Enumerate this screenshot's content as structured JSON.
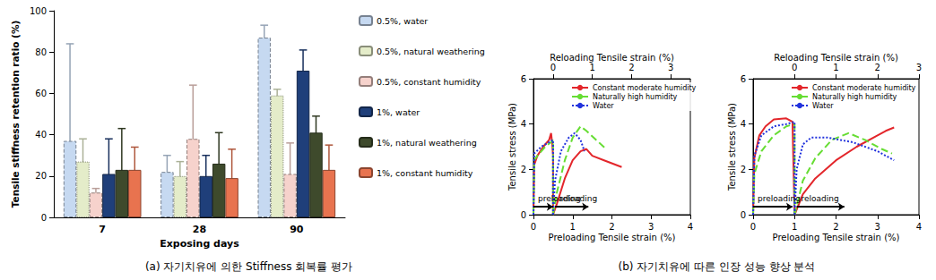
{
  "captions": [
    "(a) 자기치유에 의한 Stiffness 회복률 평가",
    "(b) 자기치유에 따른 인장 성능 향상 분석"
  ],
  "chart_data": [
    {
      "type": "bar",
      "xlabel": "Exposing days",
      "ylabel": "Tensile stiffness retention ratio (%)",
      "categories": [
        "7",
        "28",
        "90"
      ],
      "ylim": [
        0,
        100
      ],
      "yticks": [
        0,
        20,
        40,
        60,
        80,
        100
      ],
      "grid": false,
      "legend": "right",
      "series": [
        {
          "name": "0.5%, water",
          "color": "#c6d9f1",
          "line_style": "dashed",
          "values": [
            37,
            22,
            87
          ],
          "errors": [
            47,
            8,
            6
          ]
        },
        {
          "name": "0.5%, natural weathering",
          "color": "#e4ecc9",
          "line_style": "dotted",
          "values": [
            27,
            20,
            59
          ],
          "errors": [
            11,
            7,
            3
          ]
        },
        {
          "name": "0.5%, constant humidity",
          "color": "#f6d2cc",
          "line_style": "dashed",
          "values": [
            12,
            38,
            21
          ],
          "errors": [
            2,
            26,
            15
          ]
        },
        {
          "name": "1%, water",
          "color": "#1f3f7a",
          "line_style": "solid",
          "values": [
            21,
            20,
            71
          ],
          "errors": [
            17,
            10,
            10
          ]
        },
        {
          "name": "1%, natural weathering",
          "color": "#3e4a2c",
          "line_style": "solid",
          "values": [
            23,
            26,
            41
          ],
          "errors": [
            20,
            15,
            8
          ]
        },
        {
          "name": "1%, constant humidity",
          "color": "#e8734f",
          "line_style": "solid",
          "values": [
            23,
            19,
            23
          ],
          "errors": [
            11,
            14,
            12
          ]
        }
      ]
    },
    {
      "type": "line",
      "xlabel": "Preloading Tensile strain (%)",
      "x2label": "Reloading Tensile strain (%)",
      "ylabel": "Tensile stress (MPa)",
      "xlim": [
        0,
        4
      ],
      "xticks": [
        0,
        1,
        2,
        3,
        4
      ],
      "x2lim": [
        -0.5,
        3.5
      ],
      "x2ticks": [
        0,
        1,
        2,
        3
      ],
      "ylim": [
        0,
        6
      ],
      "yticks": [
        0,
        2,
        4,
        6
      ],
      "grid": false,
      "legend": "upper right",
      "annotations": [
        {
          "text": "preloading",
          "x": 0,
          "x_end": 0.5,
          "y": 0.35
        },
        {
          "text": "reloading",
          "x": 0.55,
          "x_end": 1.4,
          "y": 0.35
        }
      ],
      "series": [
        {
          "name": "Constant moderate humidity",
          "color": "#e3262b",
          "line_style": "solid",
          "axis": "x",
          "x": [
            0,
            0.02,
            0.1,
            0.25,
            0.4,
            0.45,
            0.48,
            0.5,
            0.5
          ],
          "values": [
            0,
            2.2,
            2.6,
            3.0,
            3.3,
            3.6,
            3.1,
            2.6,
            0
          ]
        },
        {
          "name": "Naturally high humidity",
          "color": "#66dd33",
          "line_style": "dashed",
          "axis": "x",
          "x": [
            0,
            0.02,
            0.1,
            0.3,
            0.45,
            0.5,
            0.5
          ],
          "values": [
            0,
            2.4,
            2.6,
            3.0,
            3.2,
            3.3,
            0
          ]
        },
        {
          "name": "Water",
          "color": "#2233dd",
          "line_style": "dotted",
          "axis": "x",
          "x": [
            0,
            0.02,
            0.2,
            0.4,
            0.5,
            0.5
          ],
          "values": [
            0,
            2.7,
            3.0,
            3.2,
            3.3,
            0
          ]
        },
        {
          "name": "Constant moderate humidity",
          "color": "#e3262b",
          "line_style": "solid",
          "axis": "x2",
          "x": [
            0,
            0.1,
            0.3,
            0.5,
            0.7,
            0.85,
            1.0,
            1.3,
            1.75
          ],
          "values": [
            0,
            0.5,
            1.6,
            2.4,
            2.8,
            2.9,
            2.6,
            2.4,
            2.1
          ]
        },
        {
          "name": "Naturally high humidity",
          "color": "#66dd33",
          "line_style": "dashed",
          "axis": "x2",
          "x": [
            0,
            0.1,
            0.3,
            0.5,
            0.7,
            0.85,
            1.1,
            1.35
          ],
          "values": [
            0,
            1.0,
            2.4,
            3.4,
            3.9,
            3.7,
            3.3,
            2.9
          ]
        },
        {
          "name": "Water",
          "color": "#2233dd",
          "line_style": "dotted",
          "axis": "x2",
          "x": [
            0,
            0.05,
            0.2,
            0.4,
            0.55,
            0.7,
            0.8
          ],
          "values": [
            0,
            1.5,
            2.8,
            3.4,
            3.6,
            3.3,
            2.8
          ]
        }
      ]
    },
    {
      "type": "line",
      "xlabel": "Preloading Tensile strain (%)",
      "x2label": "Reloading Tensile strain (%)",
      "ylabel": "Tensile stress (MPa)",
      "xlim": [
        0,
        4
      ],
      "xticks": [
        0,
        1,
        2,
        3,
        4
      ],
      "x2lim": [
        -1,
        3
      ],
      "x2ticks": [
        0,
        1,
        2,
        3
      ],
      "ylim": [
        0,
        6
      ],
      "yticks": [
        0,
        2,
        4,
        6
      ],
      "grid": false,
      "legend": "upper right",
      "annotations": [
        {
          "text": "preloading",
          "x": 0,
          "x_end": 0.95,
          "y": 0.35
        },
        {
          "text": "reloading",
          "x": 1.05,
          "x_end": 2.2,
          "y": 0.35
        }
      ],
      "series": [
        {
          "name": "Constant moderate humidity",
          "color": "#e3262b",
          "line_style": "solid",
          "axis": "x",
          "x": [
            0,
            0.03,
            0.15,
            0.3,
            0.5,
            0.8,
            0.95,
            1.0
          ],
          "values": [
            0,
            2.5,
            3.5,
            3.9,
            4.2,
            4.25,
            4.1,
            0
          ]
        },
        {
          "name": "Naturally high humidity",
          "color": "#66dd33",
          "line_style": "dashed",
          "axis": "x",
          "x": [
            0,
            0.03,
            0.2,
            0.5,
            0.8,
            1.0,
            1.0
          ],
          "values": [
            0,
            1.8,
            2.8,
            3.5,
            3.9,
            4.0,
            0
          ]
        },
        {
          "name": "Water",
          "color": "#2233dd",
          "line_style": "dotted",
          "axis": "x",
          "x": [
            0,
            0.03,
            0.2,
            0.5,
            0.8,
            1.0,
            1.0
          ],
          "values": [
            0,
            2.6,
            3.5,
            3.9,
            4.0,
            4.1,
            0
          ]
        },
        {
          "name": "Constant moderate humidity",
          "color": "#e3262b",
          "line_style": "solid",
          "axis": "x2",
          "x": [
            0,
            0.2,
            0.5,
            1.0,
            1.5,
            2.0,
            2.2,
            2.4
          ],
          "values": [
            0,
            0.9,
            1.6,
            2.4,
            3.0,
            3.5,
            3.7,
            3.85
          ]
        },
        {
          "name": "Naturally high humidity",
          "color": "#66dd33",
          "line_style": "dashed",
          "axis": "x2",
          "x": [
            0,
            0.2,
            0.5,
            0.9,
            1.3,
            1.7,
            2.1,
            2.35
          ],
          "values": [
            0,
            1.5,
            2.5,
            3.3,
            3.6,
            3.3,
            2.9,
            2.7
          ]
        },
        {
          "name": "Water",
          "color": "#2233dd",
          "line_style": "dotted",
          "axis": "x2",
          "x": [
            0,
            0.05,
            0.2,
            0.4,
            0.8,
            1.4,
            2.0,
            2.4
          ],
          "values": [
            0,
            2.0,
            3.1,
            3.4,
            3.4,
            3.2,
            2.8,
            2.4
          ]
        }
      ]
    }
  ]
}
